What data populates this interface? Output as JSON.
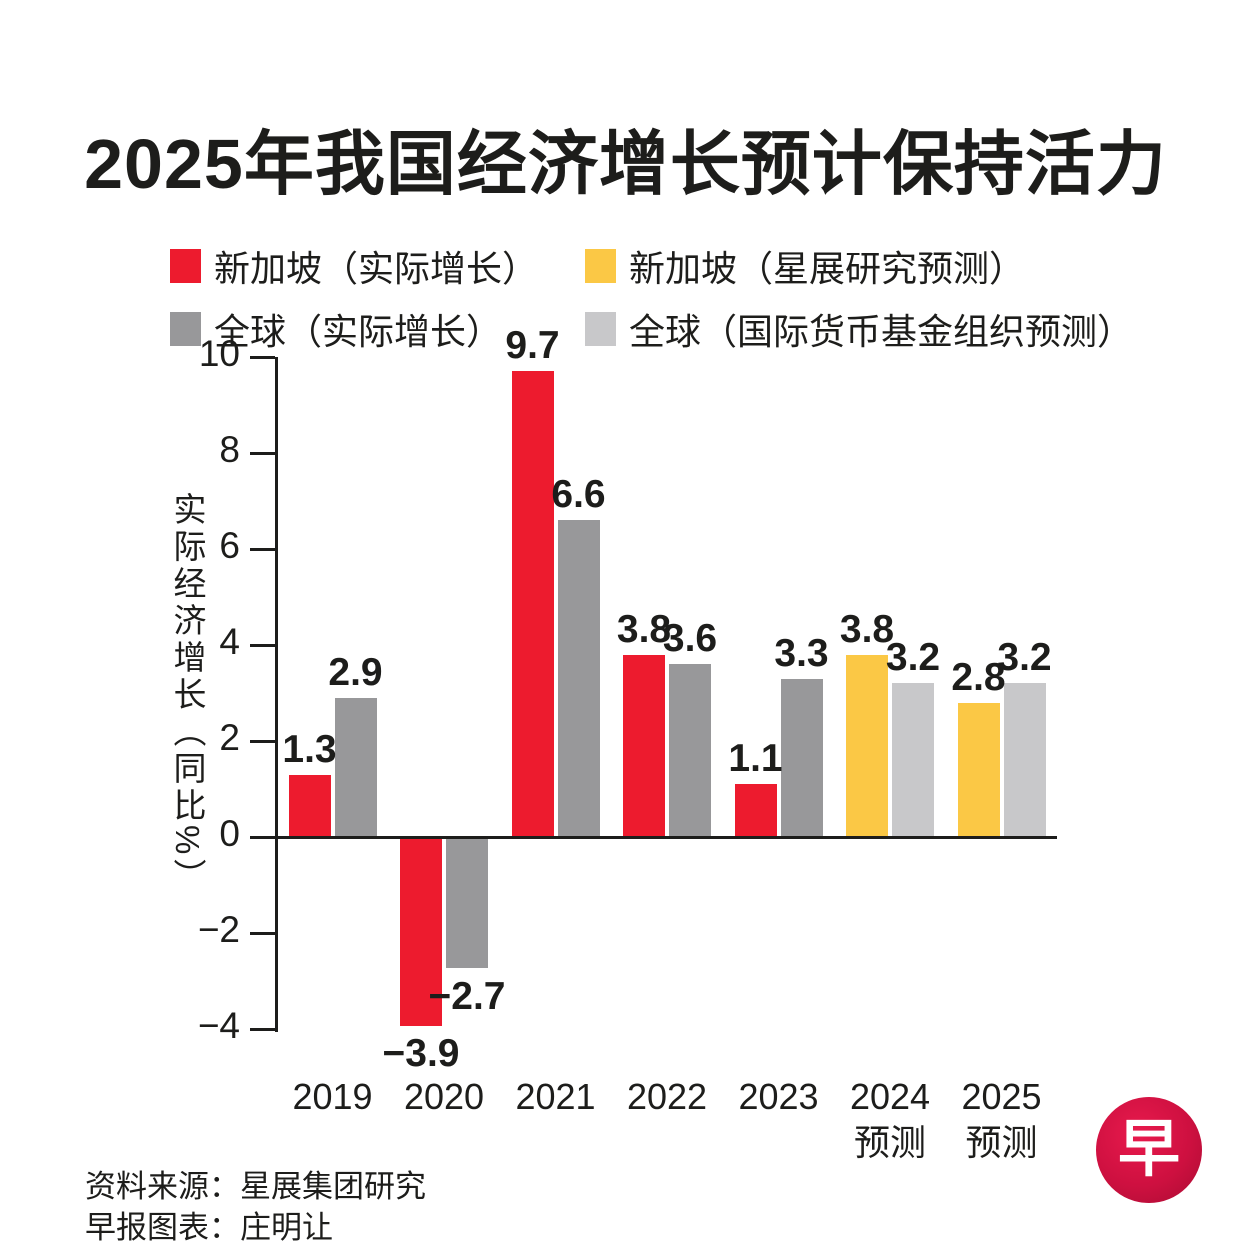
{
  "title": "2025年我国经济增长预计保持活力",
  "legend": {
    "items": [
      {
        "label": "新加坡（实际增长）",
        "color": "#ed1b2e"
      },
      {
        "label": "全球（实际增长）",
        "color": "#98989a"
      },
      {
        "label": "新加坡（星展研究预测）",
        "color": "#fbc845"
      },
      {
        "label": "全球（国际货币基金组织预测）",
        "color": "#c8c8ca"
      }
    ]
  },
  "chart_data": {
    "type": "bar",
    "title": "2025年我国经济增长预计保持活力",
    "ylabel": "实际经济增长（同比%）",
    "ylim": [
      -4,
      10
    ],
    "yticks": [
      10,
      8,
      6,
      4,
      2,
      0,
      -2,
      -4
    ],
    "ytick_labels": [
      "10",
      "8",
      "6",
      "4",
      "2",
      "0",
      "−2",
      "−4"
    ],
    "grid": false,
    "legend_position": "top",
    "series_colors": {
      "sg_actual": "#ed1b2e",
      "global_actual": "#98989a",
      "sg_forecast": "#fbc845",
      "global_forecast": "#c8c8ca"
    },
    "series_names": {
      "sg_actual": "新加坡（实际增长）",
      "global_actual": "全球（实际增长）",
      "sg_forecast": "新加坡（星展研究预测）",
      "global_forecast": "全球（国际货币基金组织预测）"
    },
    "groups": [
      {
        "label": "2019",
        "bars": [
          {
            "series": "sg_actual",
            "value": 1.3,
            "label": "1.3"
          },
          {
            "series": "global_actual",
            "value": 2.9,
            "label": "2.9"
          }
        ]
      },
      {
        "label": "2020",
        "bars": [
          {
            "series": "sg_actual",
            "value": -3.9,
            "label": "−3.9"
          },
          {
            "series": "global_actual",
            "value": -2.7,
            "label": "−2.7"
          }
        ]
      },
      {
        "label": "2021",
        "bars": [
          {
            "series": "sg_actual",
            "value": 9.7,
            "label": "9.7"
          },
          {
            "series": "global_actual",
            "value": 6.6,
            "label": "6.6"
          }
        ]
      },
      {
        "label": "2022",
        "bars": [
          {
            "series": "sg_actual",
            "value": 3.8,
            "label": "3.8"
          },
          {
            "series": "global_actual",
            "value": 3.6,
            "label": "3.6"
          }
        ]
      },
      {
        "label": "2023",
        "bars": [
          {
            "series": "sg_actual",
            "value": 1.1,
            "label": "1.1"
          },
          {
            "series": "global_actual",
            "value": 3.3,
            "label": "3.3"
          }
        ]
      },
      {
        "label": "2024",
        "label2": "预测",
        "bars": [
          {
            "series": "sg_forecast",
            "value": 3.8,
            "label": "3.8"
          },
          {
            "series": "global_forecast",
            "value": 3.2,
            "label": "3.2"
          }
        ]
      },
      {
        "label": "2025",
        "label2": "预测",
        "bars": [
          {
            "series": "sg_forecast",
            "value": 2.8,
            "label": "2.8"
          },
          {
            "series": "global_forecast",
            "value": 3.2,
            "label": "3.2"
          }
        ]
      }
    ]
  },
  "footer": {
    "source": "资料来源：星展集团研究",
    "credit": "早报图表：庄明让"
  },
  "logo": {
    "char": "早",
    "color": "#c8103e"
  }
}
